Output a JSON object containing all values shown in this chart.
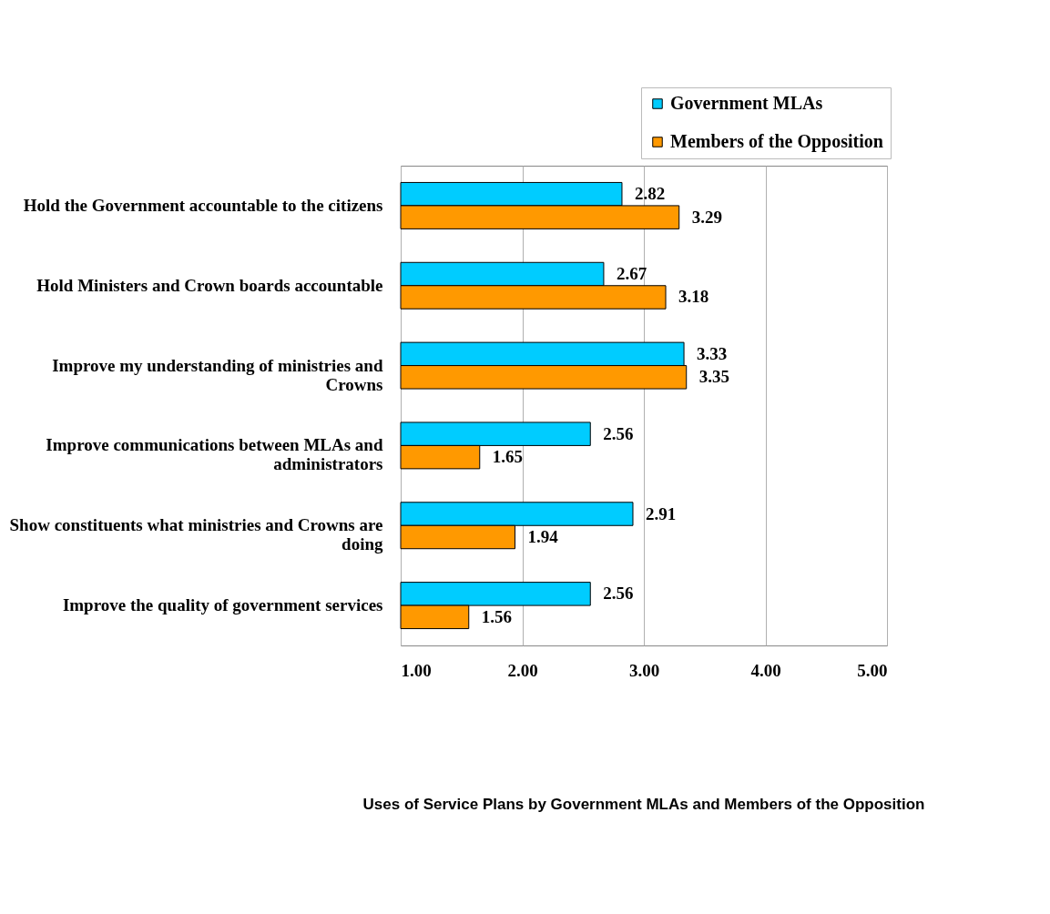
{
  "chart_data": {
    "type": "bar",
    "orientation": "horizontal",
    "title": "Uses of Service Plans by Government MLAs and Members of the Opposition",
    "categories": [
      "Hold the Government accountable to the citizens",
      "Hold Ministers and Crown boards accountable",
      "Improve my understanding of ministries and Crowns",
      "Improve communications between MLAs and administrators",
      "Show constituents what ministries and Crowns are doing",
      "Improve the quality of government services"
    ],
    "series": [
      {
        "name": "Government MLAs",
        "color": "#00ccff",
        "values": [
          2.82,
          2.67,
          3.33,
          2.56,
          2.91,
          2.56
        ]
      },
      {
        "name": "Members of the Opposition",
        "color": "#ff9900",
        "values": [
          3.29,
          3.18,
          3.35,
          1.65,
          1.94,
          1.56
        ]
      }
    ],
    "xlim": [
      1,
      5
    ],
    "xticks": [
      {
        "value": 1,
        "label": "1.00"
      },
      {
        "value": 2,
        "label": "2.00"
      },
      {
        "value": 3,
        "label": "3.00"
      },
      {
        "value": 4,
        "label": "4.00"
      },
      {
        "value": 5,
        "label": "5.00"
      }
    ],
    "grid": "x",
    "legend": "top right",
    "data_labels": true
  }
}
